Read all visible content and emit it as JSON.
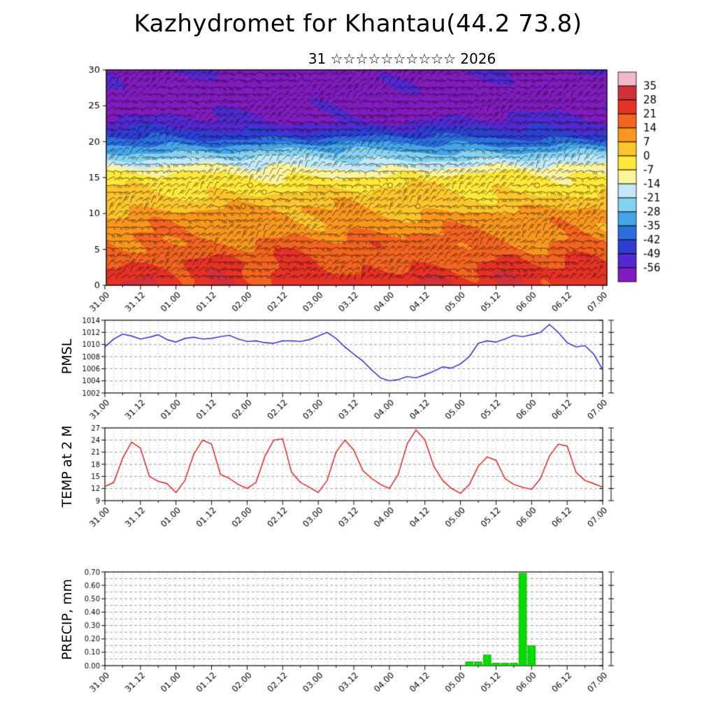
{
  "title": "Kazhydromet for Khantau(44.2 73.8)",
  "subtitle": "31 ☆☆☆☆☆☆☆☆☆☆ 2026",
  "time_axis": {
    "tick_labels": [
      "31.00",
      "31.12",
      "01.00",
      "01.12",
      "02.00",
      "02.12",
      "03.00",
      "03.12",
      "04.00",
      "04.12",
      "05.00",
      "05.12",
      "06.00",
      "06.12",
      "07.00"
    ],
    "span_hours": 168,
    "major_tick_hours": 12,
    "minor_tick_hours": 6,
    "data_step_hours": 3
  },
  "chart_data": [
    {
      "id": "cross_section",
      "type": "heatmap",
      "description": "time-height temperature cross-section with wind barbs",
      "ylim": [
        0,
        30
      ],
      "yticks": [
        0,
        5,
        10,
        15,
        20,
        25,
        30
      ],
      "colorbar_levels": [
        35,
        28,
        21,
        14,
        7,
        0,
        -7,
        -14,
        -21,
        -28,
        -35,
        -42,
        -49,
        -56
      ],
      "colorbar_colors": [
        "#f2b8cd",
        "#d03038",
        "#e63226",
        "#f2641f",
        "#f8961e",
        "#fcc52c",
        "#ffe838",
        "#fbf49e",
        "#c2e9f7",
        "#84d2f0",
        "#45a5e9",
        "#2b6ede",
        "#2e3ed2",
        "#5229cf",
        "#801cbe"
      ],
      "temp_profile_by_level": [
        [
          0,
          26
        ],
        [
          10,
          8
        ],
        [
          15,
          -5
        ],
        [
          17,
          -17
        ],
        [
          19,
          -30
        ],
        [
          21,
          -45
        ],
        [
          23,
          -56
        ],
        [
          26,
          -61
        ],
        [
          30,
          -57
        ]
      ],
      "overlay": "wind-barbs"
    },
    {
      "id": "pmsl",
      "type": "line",
      "ylabel": "PMSL",
      "color": "#2020cc",
      "ylim": [
        1002,
        1014
      ],
      "ytick_step": 2,
      "ytick_decimals": 0,
      "grid_step": 2,
      "values": [
        1009.6,
        1010.9,
        1011.7,
        1011.4,
        1010.9,
        1011.2,
        1011.6,
        1010.8,
        1010.4,
        1011.0,
        1011.2,
        1010.9,
        1011.0,
        1011.3,
        1011.5,
        1010.9,
        1010.5,
        1010.6,
        1010.3,
        1010.2,
        1010.6,
        1010.6,
        1010.5,
        1010.8,
        1011.4,
        1012.0,
        1011.0,
        1009.6,
        1008.4,
        1007.3,
        1005.8,
        1004.5,
        1004.0,
        1004.2,
        1004.7,
        1004.5,
        1005.0,
        1005.6,
        1006.3,
        1006.1,
        1006.8,
        1008.0,
        1010.2,
        1010.6,
        1010.4,
        1010.9,
        1011.5,
        1011.3,
        1011.6,
        1012.0,
        1013.3,
        1012.0,
        1010.3,
        1009.6,
        1009.8,
        1008.4,
        1005.8
      ]
    },
    {
      "id": "temp2m",
      "type": "line",
      "ylabel": "TEMP at 2 M",
      "color": "#dd1515",
      "ylim": [
        9,
        27
      ],
      "ytick_step": 3,
      "ytick_decimals": 0,
      "grid_step": 3,
      "values": [
        12.5,
        13.5,
        19.5,
        23.5,
        22.0,
        15.0,
        13.8,
        13.2,
        11.0,
        14.0,
        20.5,
        24.0,
        23.0,
        15.5,
        14.5,
        13.0,
        12.0,
        13.5,
        20.0,
        24.0,
        24.3,
        16.0,
        13.5,
        12.3,
        11.0,
        14.0,
        21.0,
        24.0,
        21.5,
        16.5,
        14.5,
        13.0,
        12.0,
        15.5,
        23.0,
        26.5,
        24.0,
        17.5,
        14.0,
        12.0,
        10.8,
        13.0,
        17.5,
        19.8,
        19.0,
        14.5,
        13.0,
        12.3,
        11.8,
        14.5,
        20.0,
        23.0,
        22.5,
        16.0,
        14.0,
        13.2,
        12.3
      ]
    },
    {
      "id": "precip",
      "type": "bar",
      "ylabel": "PRECIP, mm",
      "color": "#00dd00",
      "ylim": [
        0,
        0.7
      ],
      "ytick_step": 0.1,
      "ytick_decimals": 2,
      "grid_step": 0.05,
      "values": [
        0,
        0,
        0,
        0,
        0,
        0,
        0,
        0,
        0,
        0,
        0,
        0,
        0,
        0,
        0,
        0,
        0,
        0,
        0,
        0,
        0,
        0,
        0,
        0,
        0,
        0,
        0,
        0,
        0,
        0,
        0,
        0,
        0,
        0,
        0,
        0,
        0,
        0,
        0,
        0,
        0,
        0.03,
        0.03,
        0.08,
        0.02,
        0.02,
        0.02,
        0.69,
        0.15,
        0,
        0,
        0,
        0,
        0,
        0,
        0,
        0
      ]
    }
  ]
}
